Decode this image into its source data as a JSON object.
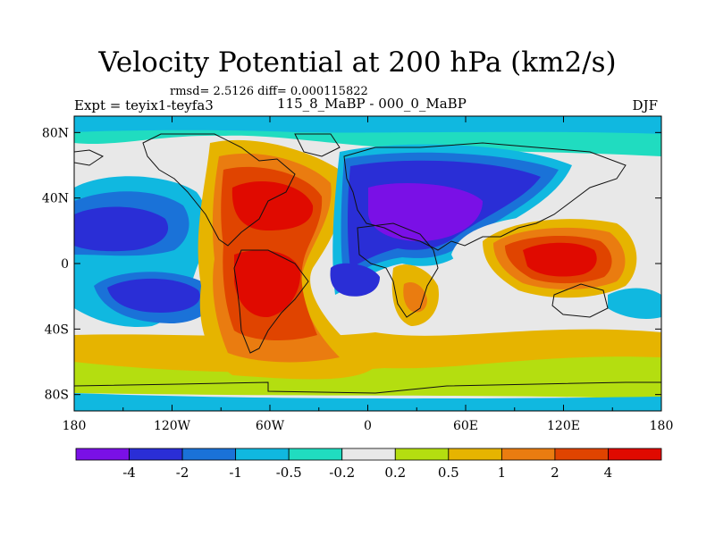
{
  "title": "Velocity Potential at 200 hPa (km2/s)",
  "stats": "rmsd= 2.5126 diff= 0.000115822",
  "left_label": "Expt = teyix1-teyfa3",
  "center_label": "115_8_MaBP - 000_0_MaBP",
  "right_label": "DJF",
  "axes": {
    "x_ticks": [
      "180",
      "120W",
      "60W",
      "0",
      "60E",
      "120E",
      "180"
    ],
    "y_ticks": [
      "80N",
      "40N",
      "0",
      "40S",
      "80S"
    ]
  },
  "colorbar": {
    "levels": [
      "-4",
      "-2",
      "-1",
      "-0.5",
      "-0.2",
      "0.2",
      "0.5",
      "1",
      "2",
      "4"
    ],
    "colors": [
      "#7a10e6",
      "#2a2ed6",
      "#1a72d8",
      "#10b8e0",
      "#20dcc0",
      "#e8e8e8",
      "#b4de10",
      "#e6b400",
      "#ea7c10",
      "#e04400",
      "#e00a00"
    ]
  },
  "map_colors": {
    "blue": "#2a2ed6",
    "mid_blue": "#1a72d8",
    "cyan": "#10b8e0",
    "teal": "#20dcc0",
    "white": "#e8e8e8",
    "lime": "#b4de10",
    "gold": "#e6b400",
    "orange": "#ea7c10",
    "dark_orange": "#e04400",
    "red": "#e00a00",
    "purple": "#7a10e6"
  }
}
